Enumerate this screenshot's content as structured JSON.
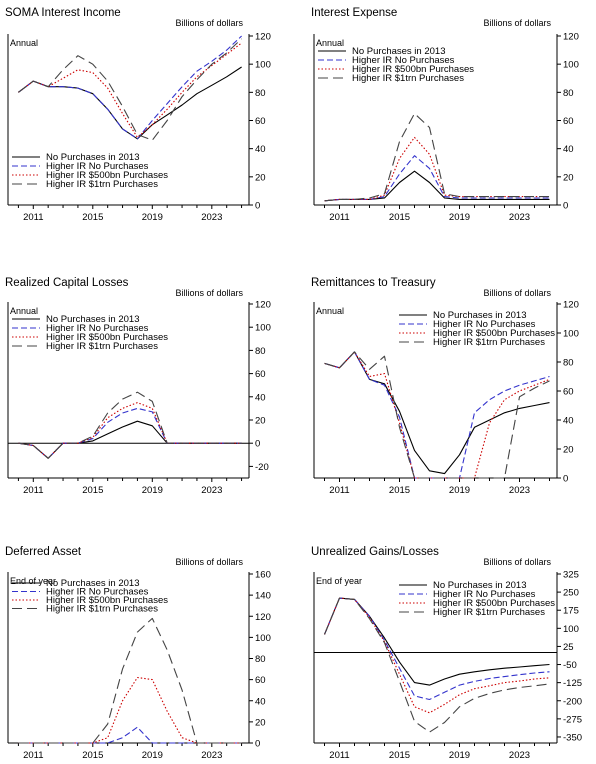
{
  "colors": {
    "s0": "#000000",
    "s1": "#3333cc",
    "s2": "#cc0000",
    "s3": "#444444"
  },
  "chart_data": [
    {
      "type": "line",
      "title": "SOMA Interest Income",
      "unit": "Billions of dollars",
      "period": "Annual",
      "ylim": [
        0,
        120
      ],
      "yticks": [
        0,
        20,
        40,
        60,
        80,
        100,
        120
      ],
      "xlim": [
        2009.3,
        2025.5
      ],
      "xticks": [
        2011,
        2015,
        2019,
        2023
      ],
      "legend": "bottom-left",
      "x": [
        2010,
        2011,
        2012,
        2013,
        2014,
        2015,
        2016,
        2017,
        2018,
        2019,
        2020,
        2021,
        2022,
        2023,
        2024,
        2025
      ],
      "series": [
        {
          "name": "No Purchases in 2013",
          "values": [
            80,
            88,
            84,
            84,
            83,
            79,
            68,
            54,
            47,
            57,
            64,
            71,
            79,
            85,
            91,
            98
          ]
        },
        {
          "name": "Higher IR No Purchases",
          "values": [
            80,
            88,
            84,
            84,
            83,
            79,
            68,
            54,
            47,
            60,
            72,
            84,
            95,
            102,
            110,
            120
          ]
        },
        {
          "name": "Higher IR $500bn Purchases",
          "values": [
            80,
            88,
            84,
            90,
            96,
            94,
            83,
            65,
            48,
            57,
            68,
            80,
            91,
            99,
            107,
            115
          ]
        },
        {
          "name": "Higher IR $1trn Purchases",
          "values": [
            80,
            88,
            84,
            96,
            106,
            100,
            88,
            70,
            50,
            46,
            60,
            77,
            89,
            100,
            108,
            118
          ]
        }
      ]
    },
    {
      "type": "line",
      "title": "Interest Expense",
      "unit": "Billions of dollars",
      "period": "Annual",
      "ylim": [
        0,
        120
      ],
      "yticks": [
        0,
        20,
        40,
        60,
        80,
        100,
        120
      ],
      "xlim": [
        2009.3,
        2025.5
      ],
      "xticks": [
        2011,
        2015,
        2019,
        2023
      ],
      "legend": "top-left",
      "x": [
        2010,
        2011,
        2012,
        2013,
        2014,
        2015,
        2016,
        2017,
        2018,
        2019,
        2020,
        2021,
        2022,
        2023,
        2024,
        2025
      ],
      "series": [
        {
          "name": "No Purchases in 2013",
          "values": [
            3,
            4,
            4,
            4,
            5,
            16,
            24,
            16,
            5,
            4,
            4,
            4,
            4,
            4,
            4,
            4
          ]
        },
        {
          "name": "Higher IR No Purchases",
          "values": [
            3,
            4,
            4,
            4,
            6,
            22,
            35,
            26,
            6,
            5,
            5,
            5,
            5,
            5,
            5,
            5
          ]
        },
        {
          "name": "Higher IR $500bn Purchases",
          "values": [
            3,
            4,
            4,
            4,
            7,
            33,
            48,
            36,
            7,
            6,
            6,
            6,
            6,
            6,
            6,
            6
          ]
        },
        {
          "name": "Higher IR $1trn Purchases",
          "values": [
            3,
            4,
            4,
            5,
            8,
            45,
            65,
            55,
            8,
            6,
            6,
            6,
            6,
            6,
            6,
            6
          ]
        }
      ]
    },
    {
      "type": "line",
      "title": "Realized Capital Losses",
      "unit": "Billions of dollars",
      "period": "Annual",
      "ylim": [
        -30,
        120
      ],
      "yticks": [
        -20,
        0,
        20,
        40,
        60,
        80,
        100,
        120
      ],
      "xlim": [
        2009.3,
        2025.5
      ],
      "xticks": [
        2011,
        2015,
        2019,
        2023
      ],
      "legend": "top-left",
      "x": [
        2010,
        2011,
        2012,
        2013,
        2014,
        2015,
        2016,
        2017,
        2018,
        2019,
        2020,
        2021,
        2022,
        2023,
        2024,
        2025
      ],
      "series": [
        {
          "name": "No Purchases in 2013",
          "values": [
            0,
            -2,
            -13,
            0,
            0,
            2,
            8,
            14,
            19,
            15,
            0,
            0,
            0,
            0,
            0,
            0
          ]
        },
        {
          "name": "Higher IR No Purchases",
          "values": [
            0,
            -2,
            -13,
            0,
            0,
            4,
            18,
            26,
            30,
            27,
            0,
            0,
            0,
            0,
            0,
            0
          ]
        },
        {
          "name": "Higher IR $500bn Purchases",
          "values": [
            0,
            -2,
            -13,
            0,
            0,
            5,
            22,
            30,
            35,
            30,
            0,
            0,
            0,
            0,
            0,
            0
          ]
        },
        {
          "name": "Higher IR $1trn Purchases",
          "values": [
            0,
            -2,
            -13,
            0,
            0,
            6,
            26,
            38,
            44,
            36,
            0,
            0,
            0,
            0,
            0,
            0
          ]
        }
      ]
    },
    {
      "type": "line",
      "title": "Remittances to Treasury",
      "unit": "Billions of dollars",
      "period": "Annual",
      "ylim": [
        0,
        120
      ],
      "yticks": [
        0,
        20,
        40,
        60,
        80,
        100,
        120
      ],
      "xlim": [
        2009.3,
        2025.5
      ],
      "xticks": [
        2011,
        2015,
        2019,
        2023
      ],
      "legend": "top-right",
      "x": [
        2010,
        2011,
        2012,
        2013,
        2014,
        2015,
        2016,
        2017,
        2018,
        2019,
        2020,
        2021,
        2022,
        2023,
        2024,
        2025
      ],
      "series": [
        {
          "name": "No Purchases in 2013",
          "values": [
            79,
            76,
            87,
            68,
            65,
            46,
            19,
            5,
            3,
            16,
            35,
            40,
            45,
            48,
            50,
            52
          ]
        },
        {
          "name": "Higher IR No Purchases",
          "values": [
            79,
            76,
            87,
            68,
            64,
            42,
            0,
            0,
            0,
            0,
            45,
            54,
            60,
            64,
            67,
            70
          ]
        },
        {
          "name": "Higher IR $500bn Purchases",
          "values": [
            79,
            76,
            87,
            70,
            72,
            38,
            0,
            0,
            0,
            0,
            0,
            38,
            54,
            60,
            64,
            68
          ]
        },
        {
          "name": "Higher IR $1trn Purchases",
          "values": [
            79,
            76,
            87,
            75,
            84,
            35,
            0,
            0,
            0,
            0,
            0,
            0,
            0,
            56,
            62,
            67
          ]
        }
      ]
    },
    {
      "type": "line",
      "title": "Deferred Asset",
      "unit": "Billions of dollars",
      "period": "End of year",
      "ylim": [
        0,
        160
      ],
      "yticks": [
        0,
        20,
        40,
        60,
        80,
        100,
        120,
        140,
        160
      ],
      "xlim": [
        2009.3,
        2025.5
      ],
      "xticks": [
        2011,
        2015,
        2019,
        2023
      ],
      "legend": "top-left",
      "x": [
        2010,
        2011,
        2012,
        2013,
        2014,
        2015,
        2016,
        2017,
        2018,
        2019,
        2020,
        2021,
        2022,
        2023,
        2024,
        2025
      ],
      "series": [
        {
          "name": "No Purchases in 2013",
          "values": [
            0,
            0,
            0,
            0,
            0,
            0,
            0,
            0,
            0,
            0,
            0,
            0,
            0,
            0,
            0,
            0
          ]
        },
        {
          "name": "Higher IR No Purchases",
          "values": [
            0,
            0,
            0,
            0,
            0,
            0,
            0,
            5,
            15,
            0,
            0,
            0,
            0,
            0,
            0,
            0
          ]
        },
        {
          "name": "Higher IR $500bn Purchases",
          "values": [
            0,
            0,
            0,
            0,
            0,
            0,
            5,
            40,
            62,
            60,
            30,
            5,
            0,
            0,
            0,
            0
          ]
        },
        {
          "name": "Higher IR $1trn Purchases",
          "values": [
            0,
            0,
            0,
            0,
            0,
            0,
            18,
            70,
            105,
            118,
            88,
            50,
            0,
            0,
            0,
            0
          ]
        }
      ]
    },
    {
      "type": "line",
      "title": "Unrealized Gains/Losses",
      "unit": "Billions of dollars",
      "period": "End of year",
      "ylim": [
        -375,
        325
      ],
      "yticks": [
        -350,
        -275,
        -200,
        -125,
        -50,
        25,
        100,
        175,
        250,
        325
      ],
      "xlim": [
        2009.3,
        2025.5
      ],
      "xticks": [
        2011,
        2015,
        2019,
        2023
      ],
      "legend": "top-right",
      "x": [
        2010,
        2011,
        2012,
        2013,
        2014,
        2015,
        2016,
        2017,
        2018,
        2019,
        2020,
        2021,
        2022,
        2023,
        2024,
        2025
      ],
      "series": [
        {
          "name": "No Purchases in 2013",
          "values": [
            75,
            225,
            220,
            150,
            60,
            -40,
            -125,
            -135,
            -110,
            -90,
            -80,
            -72,
            -65,
            -60,
            -55,
            -50
          ]
        },
        {
          "name": "Higher IR No Purchases",
          "values": [
            75,
            225,
            220,
            150,
            50,
            -65,
            -180,
            -195,
            -165,
            -135,
            -120,
            -108,
            -100,
            -92,
            -85,
            -80
          ]
        },
        {
          "name": "Higher IR $500bn Purchases",
          "values": [
            75,
            225,
            220,
            145,
            45,
            -90,
            -225,
            -250,
            -215,
            -175,
            -150,
            -138,
            -125,
            -118,
            -110,
            -105
          ]
        },
        {
          "name": "Higher IR $1trn Purchases",
          "values": [
            75,
            225,
            220,
            140,
            40,
            -120,
            -285,
            -330,
            -290,
            -225,
            -190,
            -170,
            -155,
            -145,
            -138,
            -130
          ]
        }
      ]
    }
  ]
}
